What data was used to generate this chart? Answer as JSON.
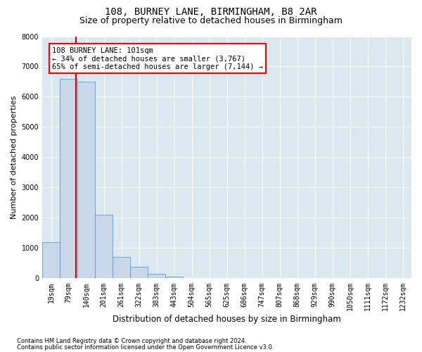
{
  "title1": "108, BURNEY LANE, BIRMINGHAM, B8 2AR",
  "title2": "Size of property relative to detached houses in Birmingham",
  "xlabel": "Distribution of detached houses by size in Birmingham",
  "ylabel": "Number of detached properties",
  "footnote1": "Contains HM Land Registry data © Crown copyright and database right 2024.",
  "footnote2": "Contains public sector information licensed under the Open Government Licence v3.0.",
  "annotation_line1": "108 BURNEY LANE: 101sqm",
  "annotation_line2": "← 34% of detached houses are smaller (3,767)",
  "annotation_line3": "65% of semi-detached houses are larger (7,144) →",
  "property_size": 101,
  "bar_color": "#c8d8e8",
  "bar_edgecolor": "#5b9bd5",
  "vline_color": "#cc0000",
  "categories": [
    "19sqm",
    "79sqm",
    "140sqm",
    "201sqm",
    "261sqm",
    "322sqm",
    "383sqm",
    "443sqm",
    "504sqm",
    "565sqm",
    "625sqm",
    "686sqm",
    "747sqm",
    "807sqm",
    "868sqm",
    "929sqm",
    "990sqm",
    "1050sqm",
    "1111sqm",
    "1172sqm",
    "1232sqm"
  ],
  "values": [
    1200,
    6600,
    6500,
    2100,
    700,
    380,
    140,
    50,
    20,
    5,
    2,
    0,
    0,
    0,
    0,
    0,
    0,
    0,
    0,
    0,
    0
  ],
  "ylim": [
    0,
    8000
  ],
  "yticks": [
    0,
    1000,
    2000,
    3000,
    4000,
    5000,
    6000,
    7000,
    8000
  ],
  "bg_color": "#dce8f0",
  "grid_color": "#ffffff",
  "title_fontsize": 10,
  "subtitle_fontsize": 9,
  "tick_fontsize": 7,
  "ylabel_fontsize": 8,
  "xlabel_fontsize": 8.5,
  "annot_fontsize": 7.5
}
